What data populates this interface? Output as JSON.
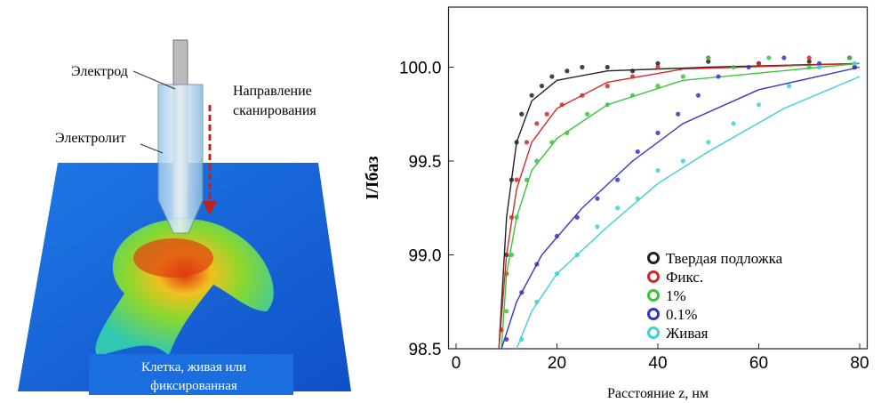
{
  "illustration": {
    "electrode": "Электрод",
    "scan_direction": [
      "Направление",
      "сканирования"
    ],
    "electrolyte": "Электролит",
    "cell": [
      "Клетка, живая или",
      "фиксированная"
    ]
  },
  "chart_data": {
    "type": "scatter",
    "y_label": "I/Iбаз",
    "x_label": "Расстояние z,  нм",
    "xlim": [
      -1.5,
      81.5
    ],
    "xticks": [
      0,
      20,
      40,
      60,
      80
    ],
    "ylim": [
      98.5,
      100.32
    ],
    "yticks": [
      98.5,
      {
        "value": 99,
        "label": "99.0"
      },
      99.5,
      {
        "value": 100,
        "label": "100.0"
      }
    ],
    "legend": "lower right",
    "series": [
      {
        "name": "Твердая подложка",
        "color": "#222222",
        "x": [
          9,
          10,
          11,
          12,
          13,
          15,
          17,
          19,
          22,
          25,
          30,
          35,
          40,
          50,
          60,
          70,
          78
        ],
        "values": [
          98.6,
          99.0,
          99.4,
          99.6,
          99.75,
          99.85,
          99.9,
          99.95,
          99.98,
          100.0,
          100.0,
          99.98,
          100.02,
          100.03,
          100.02,
          100.03,
          100.05
        ],
        "fit": {
          "x": [
            8.5,
            10,
            12,
            15,
            20,
            30,
            50,
            80
          ],
          "values": [
            98.5,
            99.2,
            99.6,
            99.82,
            99.93,
            99.98,
            100.0,
            100.02
          ]
        }
      },
      {
        "name": "Фикс.",
        "color": "#d62828",
        "x": [
          9,
          10,
          11,
          12,
          14,
          16,
          18,
          21,
          25,
          30,
          35,
          40,
          50,
          60,
          70,
          79
        ],
        "values": [
          98.6,
          98.9,
          99.2,
          99.4,
          99.6,
          99.7,
          99.75,
          99.8,
          99.85,
          99.9,
          99.95,
          100.0,
          100.05,
          100.02,
          100.05,
          100.0
        ],
        "fit": {
          "x": [
            8.5,
            10,
            12,
            15,
            20,
            30,
            45,
            80
          ],
          "values": [
            98.5,
            99.0,
            99.35,
            99.6,
            99.78,
            99.92,
            99.99,
            100.02
          ]
        }
      },
      {
        "name": "1%",
        "color": "#3cc43c",
        "x": [
          10,
          11,
          12,
          14,
          16,
          19,
          22,
          26,
          30,
          35,
          40,
          45,
          50,
          55,
          62,
          70,
          78
        ],
        "values": [
          98.7,
          99.0,
          99.2,
          99.4,
          99.5,
          99.6,
          99.65,
          99.75,
          99.8,
          99.85,
          99.9,
          99.95,
          100.05,
          100.0,
          100.05,
          100.0,
          100.05
        ],
        "fit": {
          "x": [
            9,
            10,
            12,
            15,
            20,
            30,
            45,
            80
          ],
          "values": [
            98.5,
            98.9,
            99.2,
            99.45,
            99.62,
            99.8,
            99.93,
            100.02
          ]
        }
      },
      {
        "name": "0.1%",
        "color": "#3434c4",
        "x": [
          10,
          13,
          16,
          20,
          24,
          28,
          32,
          36,
          40,
          44,
          48,
          52,
          58,
          65,
          72,
          79
        ],
        "values": [
          98.55,
          98.8,
          98.95,
          99.1,
          99.2,
          99.3,
          99.4,
          99.55,
          99.65,
          99.75,
          99.85,
          99.95,
          100.0,
          100.05,
          100.02,
          100.0
        ],
        "fit": {
          "x": [
            9,
            12,
            17,
            25,
            35,
            45,
            60,
            80
          ],
          "values": [
            98.5,
            98.75,
            99.0,
            99.25,
            99.5,
            99.7,
            99.88,
            100.0
          ]
        }
      },
      {
        "name": "Живая",
        "color": "#3cd0d8",
        "x": [
          13,
          16,
          20,
          24,
          28,
          32,
          36,
          40,
          45,
          50,
          55,
          60,
          66,
          72,
          79
        ],
        "values": [
          98.55,
          98.75,
          98.9,
          99.0,
          99.15,
          99.25,
          99.3,
          99.45,
          99.5,
          99.6,
          99.7,
          99.8,
          99.9,
          100.0,
          100.02
        ],
        "fit": {
          "x": [
            12,
            15,
            20,
            30,
            40,
            50,
            65,
            80
          ],
          "values": [
            98.5,
            98.7,
            98.9,
            99.15,
            99.38,
            99.55,
            99.78,
            99.95
          ]
        }
      }
    ]
  }
}
